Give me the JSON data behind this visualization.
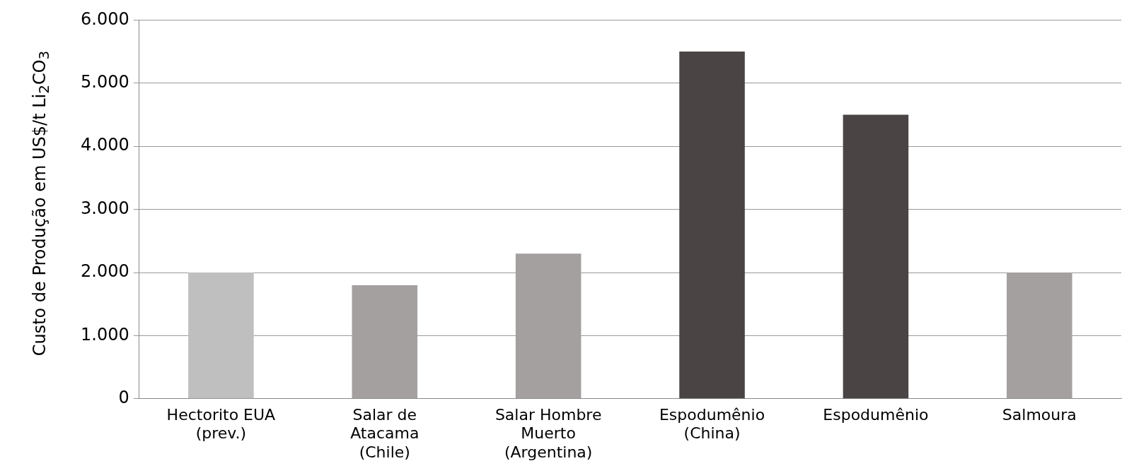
{
  "chart_data": {
    "type": "bar",
    "ylabel": "Custo de Produção em US$/t Li$_{2}$CO$_{3}$",
    "categories": [
      "Hectorito EUA (prev.)",
      "Salar de Atacama (Chile)",
      "Salar Hombre Muerto (Argentina)",
      "Espodumênio (China)",
      "Espodumênio",
      "Salmoura"
    ],
    "values": [
      2000,
      1800,
      2300,
      5500,
      4500,
      2000
    ],
    "colors": [
      "#c0bfbf",
      "#a4a09f",
      "#a4a09f",
      "#4a4544",
      "#4a4544",
      "#a4a09f"
    ],
    "ylim": [
      0,
      6000
    ],
    "yticks": [
      0,
      {
        "value": 1000,
        "label": "1.000"
      },
      {
        "value": 2000,
        "label": "2.000"
      },
      {
        "value": 3000,
        "label": "3.000"
      },
      {
        "value": 4000,
        "label": "4.000"
      },
      {
        "value": 5000,
        "label": "5.000"
      },
      {
        "value": 6000,
        "label": "6.000"
      }
    ],
    "grid": "y",
    "legend": false
  }
}
